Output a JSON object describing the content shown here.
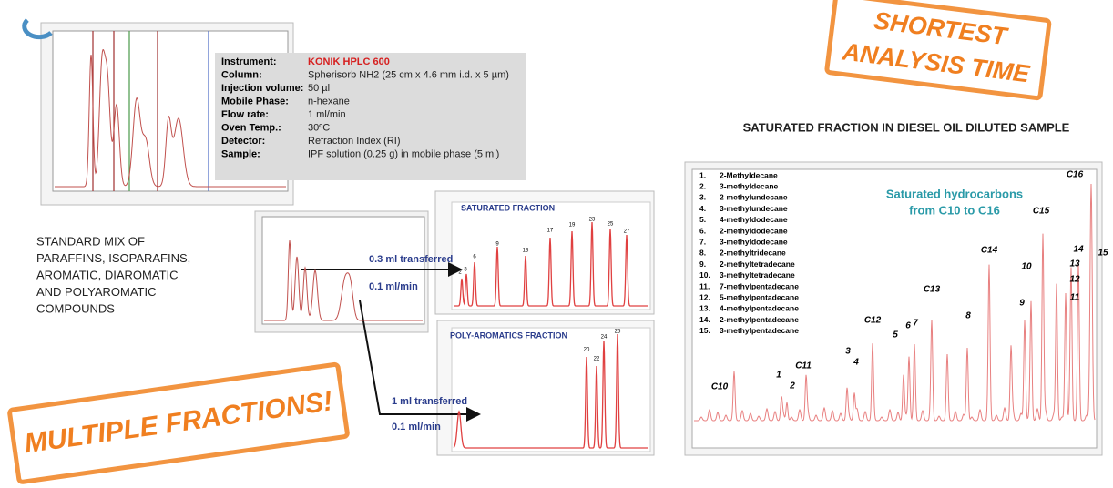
{
  "stamps": {
    "top": [
      "SHORTEST",
      "ANALYSIS TIME"
    ],
    "bottom": "MULTIPLE FRACTIONS!"
  },
  "caption": [
    "STANDARD MIX OF",
    "PARAFFINS, ISOPARAFINS,",
    "AROMATIC, DIAROMATIC",
    "AND POLYAROMATIC",
    "COMPOUNDS"
  ],
  "instrument_table": [
    [
      "Instrument:",
      "KONIK HPLC 600"
    ],
    [
      "Column:",
      "Spherisorb NH2 (25 cm x 4.6 mm i.d. x 5 µm)"
    ],
    [
      "Injection volume:",
      "50 µl"
    ],
    [
      "Mobile Phase:",
      "n-hexane"
    ],
    [
      "Flow rate:",
      "1 ml/min"
    ],
    [
      "Oven Temp.:",
      "30ºC"
    ],
    [
      "Detector:",
      "Refraction Index (RI)"
    ],
    [
      "Sample:",
      "IPF solution (0.25 g) in mobile phase (5 ml)"
    ]
  ],
  "transfers": [
    {
      "volume": "0.3 ml transferred",
      "flow": "0.1 ml/min"
    },
    {
      "volume": "1 ml transferred",
      "flow": "0.1 ml/min"
    }
  ],
  "saturated_panel": {
    "title": "SATURATED FRACTION",
    "peaks": [
      "2",
      "3",
      "6",
      "9",
      "13",
      "17",
      "19",
      "23",
      "25",
      "27"
    ]
  },
  "poly_panel": {
    "title": "POLY-AROMATICS FRACTION",
    "peaks": [
      "20",
      "22",
      "24",
      "25"
    ]
  },
  "diesel": {
    "title": "SATURATED FRACTION IN DIESEL OIL DILUTED SAMPLE",
    "annotation": [
      "Saturated hydrocarbons",
      "from C10 to C16"
    ],
    "legend": [
      [
        "1.",
        "2-Methyldecane"
      ],
      [
        "2.",
        "3-methyldecane"
      ],
      [
        "3.",
        "2-methylundecane"
      ],
      [
        "4.",
        "3-methylundecane"
      ],
      [
        "5.",
        "4-methyldodecane"
      ],
      [
        "6.",
        "2-methyldodecane"
      ],
      [
        "7.",
        "3-methyldodecane"
      ],
      [
        "8.",
        "2-methyltridecane"
      ],
      [
        "9.",
        "2-methyltetradecane"
      ],
      [
        "10.",
        "3-methyltetradecane"
      ],
      [
        "11.",
        "7-methylpentadecane"
      ],
      [
        "12.",
        "5-methylpentadecane"
      ],
      [
        "13.",
        "4-methylpentadecane"
      ],
      [
        "14.",
        "2-methylpentadecane"
      ],
      [
        "15.",
        "3-methylpentadecane"
      ]
    ],
    "peaks": [
      "C10",
      "1",
      "2",
      "C11",
      "3",
      "4",
      "C12",
      "5",
      "6",
      "7",
      "C13",
      "8",
      "C14",
      "9",
      "10",
      "C15",
      "14",
      "15",
      "13",
      "12",
      "11",
      "C16"
    ]
  }
}
